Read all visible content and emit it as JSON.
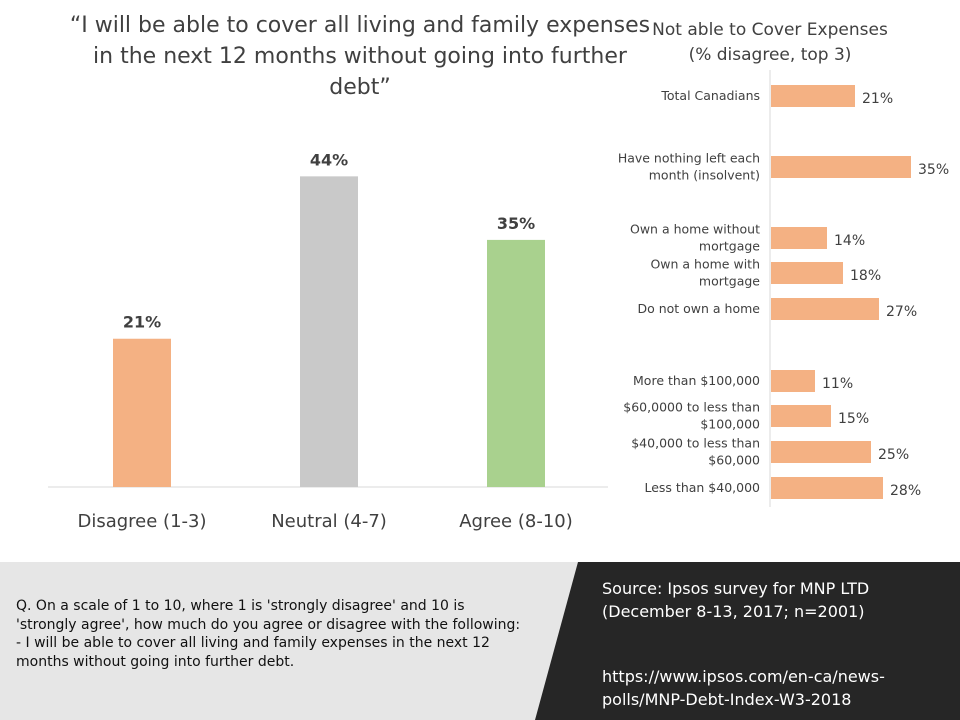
{
  "main_title": "“I will be able to cover all living and family expenses in the next 12 months without going into further debt”",
  "side_title_line1": "Not able to Cover Expenses",
  "side_title_line2": "(% disagree, top 3)",
  "question": "Q. On a scale of 1 to 10, where 1 is 'strongly disagree' and 10 is 'strongly agree', how much do you agree or disagree with the following: - I will be able to cover all living and family expenses in the next 12 months without going into further debt.",
  "source_line1": "Source:  Ipsos survey for MNP LTD",
  "source_line2": "(December  8-13, 2017; n=2001)",
  "source_url_line1": "https://www.ipsos.com/en-ca/news-",
  "source_url_line2": "polls/MNP-Debt-Index-W3-2018",
  "colors": {
    "disagree": "#f4b183",
    "neutral": "#c9c9c9",
    "agree": "#a9d18e",
    "footer_dark": "#262626",
    "footer_light": "#e6e6e6"
  },
  "chart_data": [
    {
      "type": "bar",
      "title": "“I will be able to cover all living and family expenses in the next 12 months without going into further debt”",
      "categories": [
        "Disagree (1-3)",
        "Neutral (4-7)",
        "Agree (8-10)"
      ],
      "values": [
        21,
        44,
        35
      ],
      "value_labels": [
        "21%",
        "44%",
        "35%"
      ],
      "colors": [
        "#f4b183",
        "#c9c9c9",
        "#a9d18e"
      ],
      "ylim": [
        0,
        50
      ],
      "grid": false
    },
    {
      "type": "bar",
      "orientation": "horizontal",
      "title": "Not able to Cover Expenses (% disagree, top 3)",
      "groups": [
        [
          {
            "label_lines": [
              "Total Canadians"
            ],
            "value": 21,
            "value_label": "21%"
          }
        ],
        [
          {
            "label_lines": [
              "Have nothing left each",
              "month (insolvent)"
            ],
            "value": 35,
            "value_label": "35%"
          }
        ],
        [
          {
            "label_lines": [
              "Own a home without",
              "mortgage"
            ],
            "value": 14,
            "value_label": "14%"
          },
          {
            "label_lines": [
              "Own a home with",
              "mortgage"
            ],
            "value": 18,
            "value_label": "18%"
          },
          {
            "label_lines": [
              "Do not own a home"
            ],
            "value": 27,
            "value_label": "27%"
          }
        ],
        [
          {
            "label_lines": [
              "More than $100,000"
            ],
            "value": 11,
            "value_label": "11%"
          },
          {
            "label_lines": [
              "$60,0000 to less than",
              "$100,000"
            ],
            "value": 15,
            "value_label": "15%"
          },
          {
            "label_lines": [
              "$40,000 to less than",
              "$60,000"
            ],
            "value": 25,
            "value_label": "25%"
          },
          {
            "label_lines": [
              "Less than $40,000"
            ],
            "value": 28,
            "value_label": "28%"
          }
        ]
      ],
      "color": "#f4b183",
      "xlim": [
        0,
        40
      ],
      "grid": false
    }
  ]
}
